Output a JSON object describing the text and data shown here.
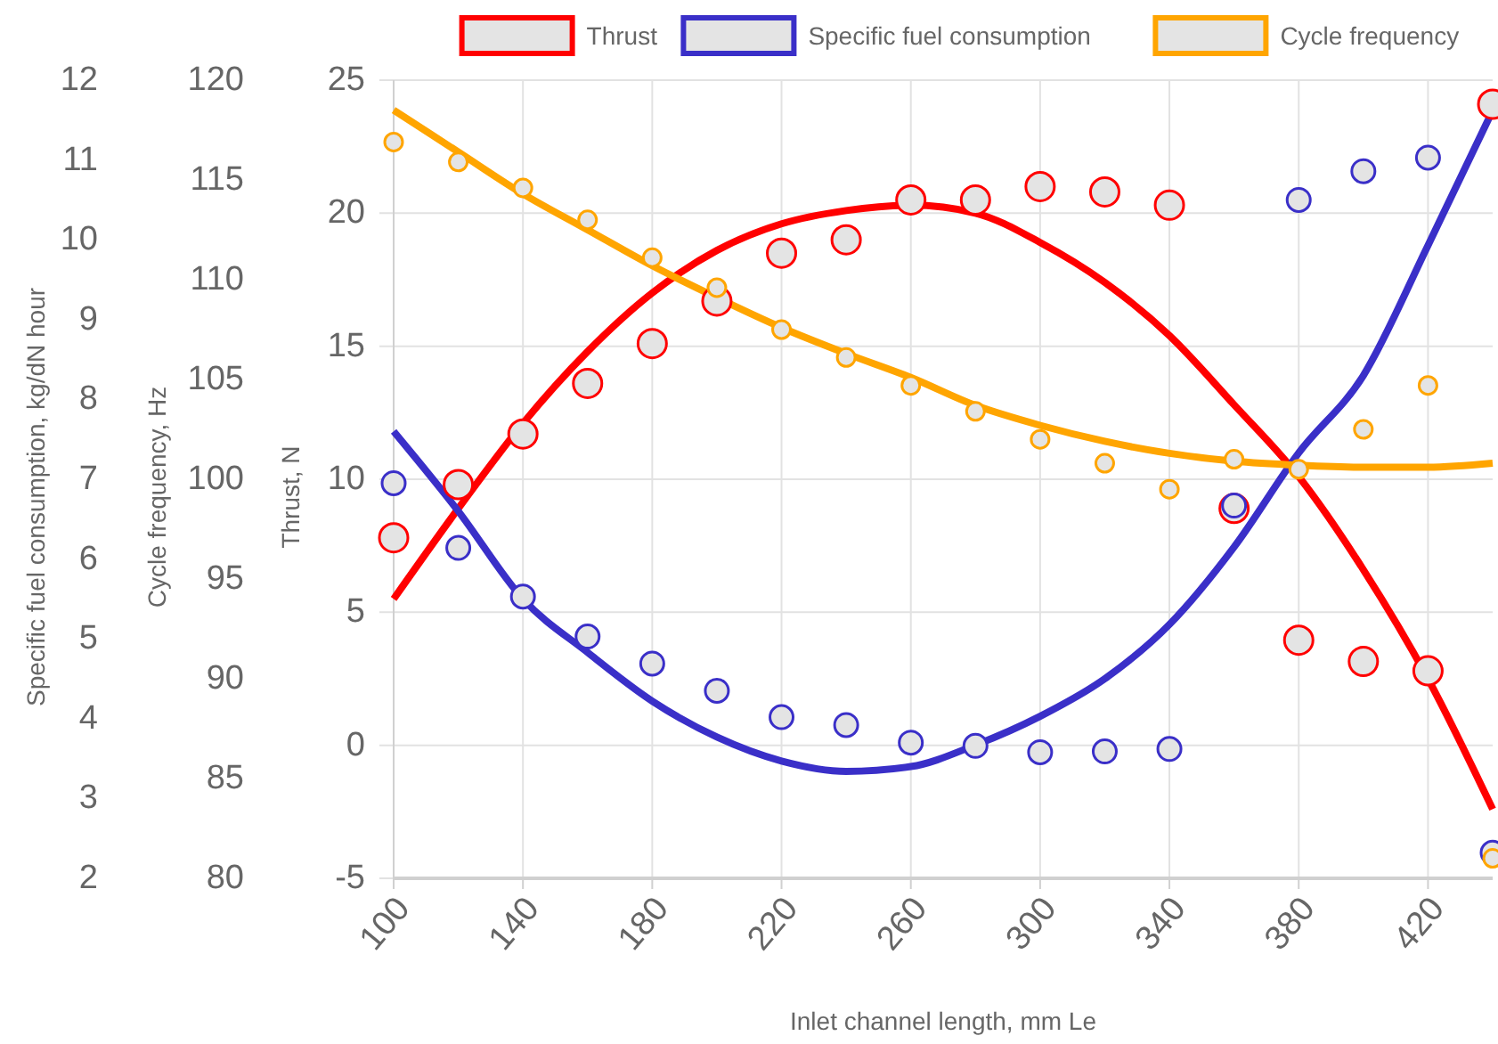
{
  "chart_data": {
    "type": "line",
    "xlabel": "Inlet channel length, mm Le",
    "ylabel": "Thrust, N",
    "y2label": "Cycle frequency, Hz",
    "y3label": "Specific fuel consumption, kg/dN hour",
    "xlim": [
      100,
      440
    ],
    "xticks": [
      100,
      140,
      180,
      220,
      260,
      300,
      340,
      380,
      420
    ],
    "ylim": [
      -5,
      25
    ],
    "yticks": [
      -5,
      0,
      5,
      10,
      15,
      20,
      25
    ],
    "y2lim": [
      80,
      120
    ],
    "y2ticks": [
      80,
      85,
      90,
      95,
      100,
      105,
      110,
      115,
      120
    ],
    "y3lim": [
      2,
      12
    ],
    "y3ticks": [
      2,
      3,
      4,
      5,
      6,
      7,
      8,
      9,
      10,
      11,
      12
    ],
    "grid": true,
    "legend": "top",
    "series": [
      {
        "name": "Thrust",
        "axis": "y",
        "color": "#ff0000",
        "marker": "none",
        "x": [
          100,
          120,
          140,
          160,
          180,
          200,
          220,
          240,
          260,
          280,
          300,
          320,
          340,
          360,
          380,
          400,
          420,
          440
        ],
        "values": [
          5.5,
          8.9,
          12.1,
          14.8,
          17.0,
          18.6,
          19.6,
          20.1,
          20.3,
          20.0,
          18.9,
          17.4,
          15.4,
          12.8,
          10.1,
          6.6,
          2.5,
          -2.4
        ]
      },
      {
        "name": "Specific fuel consumption",
        "axis": "y3",
        "color": "#3a2fc8",
        "marker": "none",
        "x": [
          100,
          120,
          140,
          160,
          180,
          200,
          220,
          240,
          260,
          280,
          300,
          320,
          340,
          360,
          380,
          400,
          420,
          440
        ],
        "values": [
          7.6,
          6.6,
          5.5,
          4.83,
          4.22,
          3.77,
          3.47,
          3.34,
          3.4,
          3.67,
          4.03,
          4.5,
          5.18,
          6.15,
          7.33,
          8.3,
          9.93,
          11.62
        ]
      },
      {
        "name": "Cycle frequency",
        "axis": "y2",
        "color": "#ffa500",
        "marker": "none",
        "x": [
          100,
          120,
          140,
          160,
          180,
          200,
          220,
          240,
          260,
          280,
          300,
          320,
          340,
          360,
          380,
          400,
          420,
          440
        ],
        "values": [
          118.5,
          116.4,
          114.3,
          112.5,
          110.7,
          109.1,
          107.6,
          106.3,
          105.1,
          103.7,
          102.7,
          101.9,
          101.3,
          100.9,
          100.7,
          100.6,
          100.6,
          100.8
        ]
      },
      {
        "type": "scatter",
        "axis": "y",
        "color": "#ff0000",
        "marker": "circle",
        "x": [
          100,
          120,
          140,
          160,
          180,
          200,
          220,
          240,
          260,
          280,
          300,
          320,
          340,
          360,
          380,
          400,
          420,
          440
        ],
        "values": [
          7.8,
          9.8,
          11.7,
          13.6,
          15.1,
          16.7,
          18.5,
          19.0,
          20.5,
          20.5,
          21.0,
          20.8,
          20.3,
          8.9,
          3.95,
          3.15,
          2.8,
          24.1
        ]
      },
      {
        "type": "scatter",
        "axis": "y3",
        "color": "#3a2fc8",
        "marker": "circle",
        "x": [
          100,
          120,
          140,
          160,
          180,
          200,
          220,
          240,
          260,
          280,
          300,
          320,
          340,
          360,
          380,
          400,
          420,
          440
        ],
        "values": [
          6.95,
          6.14,
          5.53,
          5.03,
          4.69,
          4.35,
          4.02,
          3.92,
          3.7,
          3.66,
          3.58,
          3.59,
          3.62,
          6.67,
          10.5,
          10.86,
          11.03,
          2.32
        ]
      },
      {
        "type": "scatter",
        "axis": "y2",
        "color": "#ffa500",
        "marker": "circle",
        "x": [
          100,
          120,
          140,
          160,
          180,
          200,
          220,
          240,
          260,
          280,
          300,
          320,
          340,
          360,
          380,
          400,
          420,
          440
        ],
        "values": [
          116.9,
          115.9,
          114.6,
          113.0,
          111.1,
          109.6,
          107.5,
          106.1,
          104.7,
          103.4,
          102.0,
          100.8,
          99.5,
          101.0,
          100.5,
          102.5,
          104.7,
          81.0
        ]
      }
    ]
  }
}
